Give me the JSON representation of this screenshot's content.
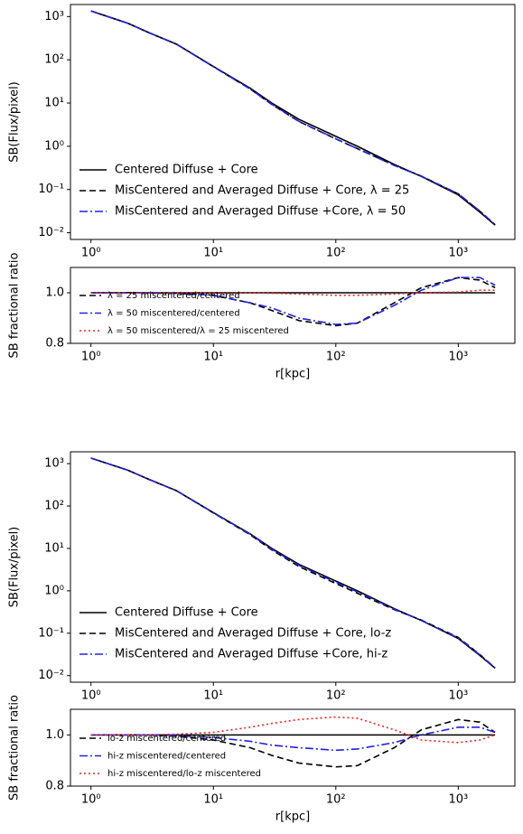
{
  "chart_data": [
    {
      "type": "line",
      "log_x": true,
      "log_y": true,
      "ylabel": "SB(Flux/pixel)",
      "legend": "lower left",
      "x": [
        1,
        2,
        3,
        5,
        10,
        20,
        30,
        50,
        100,
        150,
        300,
        500,
        1000,
        1500,
        2000
      ],
      "xlim": [
        0.68,
        2900
      ],
      "ylim": [
        0.007,
        1900
      ],
      "xticks": [
        {
          "value": 1,
          "label": "10⁰"
        },
        {
          "value": 10,
          "label": "10¹"
        },
        {
          "value": 100,
          "label": "10²"
        },
        {
          "value": 1000,
          "label": "10³"
        }
      ],
      "yticks": [
        {
          "value": 0.01,
          "label": "10⁻²"
        },
        {
          "value": 0.1,
          "label": "10⁻¹"
        },
        {
          "value": 1,
          "label": "10⁰"
        },
        {
          "value": 10,
          "label": "10¹"
        },
        {
          "value": 100,
          "label": "10²"
        },
        {
          "value": 1000,
          "label": "10³"
        }
      ],
      "series": [
        {
          "name": "Centered Diffuse + Core",
          "color": "#000000",
          "linestyle": "solid",
          "values": [
            1350,
            700,
            420,
            230,
            70,
            22,
            10,
            4.2,
            1.7,
            1.0,
            0.38,
            0.2,
            0.075,
            0.03,
            0.015
          ]
        },
        {
          "name": "MisCentered and Averaged Diffuse + Core, λ = 25",
          "color": "#000000",
          "linestyle": "dashed",
          "values": [
            1350,
            700,
            420,
            229.5,
            69.3,
            21.1,
            9.3,
            3.74,
            1.48,
            0.88,
            0.365,
            0.204,
            0.0795,
            0.0315,
            0.0153
          ]
        },
        {
          "name": "MisCentered and Averaged Diffuse +Core, λ = 50",
          "color": "#2222dd",
          "linestyle": "dashdot",
          "values": [
            1350,
            700,
            420,
            229.5,
            69.3,
            21.1,
            9.4,
            3.78,
            1.49,
            0.88,
            0.361,
            0.202,
            0.0795,
            0.0318,
            0.0155
          ]
        }
      ]
    },
    {
      "type": "line",
      "log_x": true,
      "log_y": false,
      "ylabel": "SB fractional ratio",
      "xlabel": "r[kpc]",
      "legend": "lower left",
      "reference_line": 1.0,
      "x": [
        1,
        2,
        3,
        5,
        10,
        20,
        30,
        50,
        100,
        150,
        300,
        500,
        1000,
        1500,
        2000
      ],
      "xlim": [
        0.68,
        2900
      ],
      "ylim": [
        0.8,
        1.1
      ],
      "xticks": [
        {
          "value": 1,
          "label": "10⁰"
        },
        {
          "value": 10,
          "label": "10¹"
        },
        {
          "value": 100,
          "label": "10²"
        },
        {
          "value": 1000,
          "label": "10³"
        }
      ],
      "yticks": [
        {
          "value": 0.8,
          "label": "0.8"
        },
        {
          "value": 1.0,
          "label": "1.0"
        }
      ],
      "series": [
        {
          "name": "λ = 25 miscentered/centered",
          "color": "#000000",
          "linestyle": "dashed",
          "values": [
            1,
            1,
            1,
            0.998,
            0.99,
            0.96,
            0.93,
            0.89,
            0.87,
            0.88,
            0.96,
            1.02,
            1.06,
            1.05,
            1.02
          ]
        },
        {
          "name": "λ = 50 miscentered/centered",
          "color": "#2222dd",
          "linestyle": "dashdot",
          "values": [
            1,
            1,
            1,
            0.998,
            0.99,
            0.96,
            0.94,
            0.9,
            0.875,
            0.88,
            0.95,
            1.01,
            1.06,
            1.06,
            1.03
          ]
        },
        {
          "name": "λ = 50 miscentered/λ = 25 miscentered",
          "color": "#ee2222",
          "linestyle": "dotted",
          "values": [
            1,
            1,
            1,
            1,
            1,
            1,
            0.998,
            0.995,
            0.99,
            0.99,
            0.995,
            1.0,
            1.003,
            1.01,
            1.01
          ]
        }
      ]
    },
    {
      "type": "line",
      "log_x": true,
      "log_y": true,
      "ylabel": "SB(Flux/pixel)",
      "legend": "lower left",
      "x": [
        1,
        2,
        3,
        5,
        10,
        20,
        30,
        50,
        100,
        150,
        300,
        500,
        1000,
        1500,
        2000
      ],
      "xlim": [
        0.68,
        2900
      ],
      "ylim": [
        0.007,
        1900
      ],
      "xticks": [
        {
          "value": 1,
          "label": "10⁰"
        },
        {
          "value": 10,
          "label": "10¹"
        },
        {
          "value": 100,
          "label": "10²"
        },
        {
          "value": 1000,
          "label": "10³"
        }
      ],
      "yticks": [
        {
          "value": 0.01,
          "label": "10⁻²"
        },
        {
          "value": 0.1,
          "label": "10⁻¹"
        },
        {
          "value": 1,
          "label": "10⁰"
        },
        {
          "value": 10,
          "label": "10¹"
        },
        {
          "value": 100,
          "label": "10²"
        },
        {
          "value": 1000,
          "label": "10³"
        }
      ],
      "series": [
        {
          "name": "Centered Diffuse + Core",
          "color": "#000000",
          "linestyle": "solid",
          "values": [
            1350,
            700,
            420,
            230,
            70,
            22,
            10,
            4.2,
            1.7,
            1.0,
            0.38,
            0.2,
            0.075,
            0.03,
            0.015
          ]
        },
        {
          "name": "MisCentered and Averaged Diffuse + Core, lo-z",
          "color": "#000000",
          "linestyle": "dashed",
          "values": [
            1350,
            700,
            420,
            228.9,
            68.6,
            20.9,
            9.2,
            3.74,
            1.49,
            0.88,
            0.361,
            0.204,
            0.0795,
            0.0315,
            0.0152
          ]
        },
        {
          "name": "MisCentered and Averaged Diffuse +Core, hi-z",
          "color": "#2222dd",
          "linestyle": "dashdot",
          "values": [
            1350,
            700,
            420,
            229.5,
            69.3,
            21.5,
            9.6,
            3.99,
            1.6,
            0.945,
            0.369,
            0.2,
            0.0773,
            0.0309,
            0.0152
          ]
        }
      ]
    },
    {
      "type": "line",
      "log_x": true,
      "log_y": false,
      "ylabel": "SB fractional ratio",
      "xlabel": "r[kpc]",
      "legend": "lower left",
      "reference_line": 1.0,
      "x": [
        1,
        2,
        3,
        5,
        10,
        20,
        30,
        50,
        100,
        150,
        300,
        500,
        1000,
        1500,
        2000
      ],
      "xlim": [
        0.68,
        2900
      ],
      "ylim": [
        0.8,
        1.1
      ],
      "xticks": [
        {
          "value": 1,
          "label": "10⁰"
        },
        {
          "value": 10,
          "label": "10¹"
        },
        {
          "value": 100,
          "label": "10²"
        },
        {
          "value": 1000,
          "label": "10³"
        }
      ],
      "yticks": [
        {
          "value": 0.8,
          "label": "0.8"
        },
        {
          "value": 1.0,
          "label": "1.0"
        }
      ],
      "series": [
        {
          "name": "lo-z miscentered/centered",
          "color": "#000000",
          "linestyle": "dashed",
          "values": [
            1,
            1,
            1,
            0.995,
            0.98,
            0.95,
            0.92,
            0.89,
            0.875,
            0.88,
            0.95,
            1.02,
            1.06,
            1.05,
            1.01
          ]
        },
        {
          "name": "hi-z miscentered/centered",
          "color": "#2222dd",
          "linestyle": "dashdot",
          "values": [
            1,
            1,
            1,
            0.998,
            0.99,
            0.975,
            0.96,
            0.95,
            0.94,
            0.945,
            0.97,
            1.0,
            1.03,
            1.03,
            1.01
          ]
        },
        {
          "name": "hi-z miscentered/lo-z miscentered",
          "color": "#ee2222",
          "linestyle": "dotted",
          "values": [
            1,
            1,
            1,
            1.003,
            1.01,
            1.03,
            1.045,
            1.06,
            1.07,
            1.065,
            1.02,
            0.98,
            0.97,
            0.98,
            1.0
          ]
        }
      ]
    }
  ]
}
